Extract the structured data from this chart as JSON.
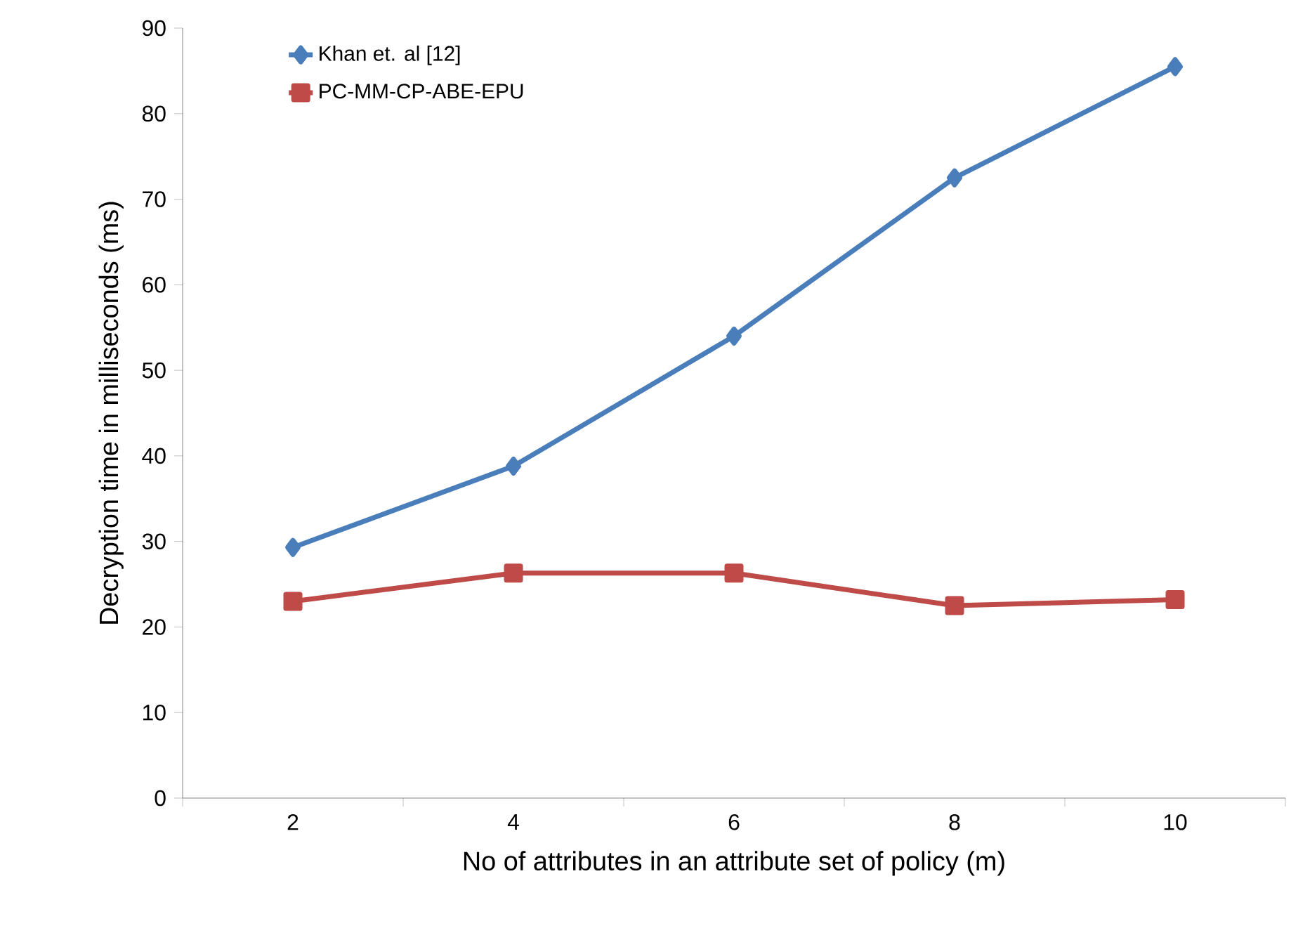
{
  "chart_data": {
    "type": "line",
    "xlabel": "No of attributes in an attribute set of policy  (m)",
    "ylabel": "Decryption time in milliseconds (ms)",
    "categories": [
      "2",
      "4",
      "6",
      "8",
      "10"
    ],
    "series": [
      {
        "name": "Khan et. al [12]",
        "color": "#4a7ebb",
        "marker": "diamond",
        "values": [
          29.3,
          38.8,
          54,
          72.5,
          85.5
        ]
      },
      {
        "name": "PC-MM-CP-ABE-EPU",
        "color": "#be4b48",
        "marker": "square",
        "values": [
          23,
          26.3,
          26.3,
          22.5,
          23.2
        ]
      }
    ],
    "ylim": [
      0,
      90
    ],
    "yticks": [
      0,
      10,
      20,
      30,
      40,
      50,
      60,
      70,
      80,
      90
    ],
    "legend": "top left",
    "grid": false,
    "line_style": "solid"
  }
}
